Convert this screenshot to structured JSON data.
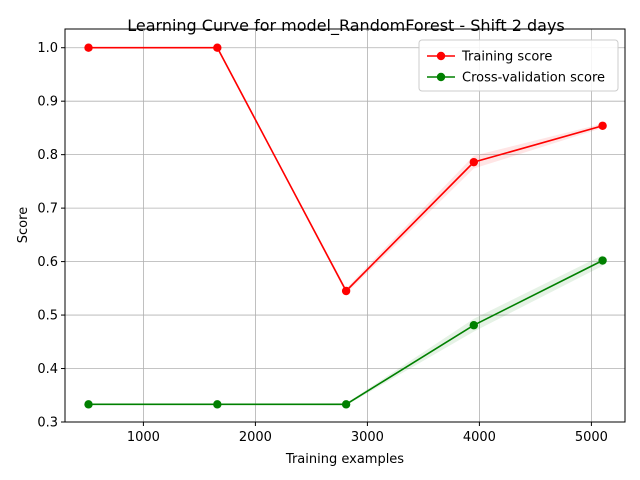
{
  "chart_data": {
    "type": "line",
    "title": "Learning Curve for model_RandomForest - Shift 2 days",
    "xlabel": "Training examples",
    "ylabel": "Score",
    "xlim": [
      300,
      5300
    ],
    "ylim": [
      0.3,
      1.035
    ],
    "xticks": [
      1000,
      2000,
      3000,
      4000,
      5000
    ],
    "yticks": [
      0.3,
      0.4,
      0.5,
      0.6,
      0.7,
      0.8,
      0.9,
      1.0
    ],
    "xtick_labels": [
      "1000",
      "2000",
      "3000",
      "4000",
      "5000"
    ],
    "ytick_labels": [
      "0.3",
      "0.4",
      "0.5",
      "0.6",
      "0.7",
      "0.8",
      "0.9",
      "1.0"
    ],
    "grid": true,
    "legend_position": "top-right",
    "x": [
      510,
      1660,
      2810,
      3950,
      5100
    ],
    "series": [
      {
        "name": "Training score",
        "color": "#ff0000",
        "band_color": "#ff0000",
        "values": [
          1.0,
          1.0,
          0.545,
          0.786,
          0.854
        ],
        "band": [
          0.0,
          0.0,
          0.005,
          0.012,
          0.004
        ]
      },
      {
        "name": "Cross-validation score",
        "color": "#008000",
        "band_color": "#008000",
        "values": [
          0.333,
          0.333,
          0.333,
          0.481,
          0.602
        ],
        "band": [
          0.0,
          0.0,
          0.002,
          0.012,
          0.01
        ]
      }
    ]
  }
}
